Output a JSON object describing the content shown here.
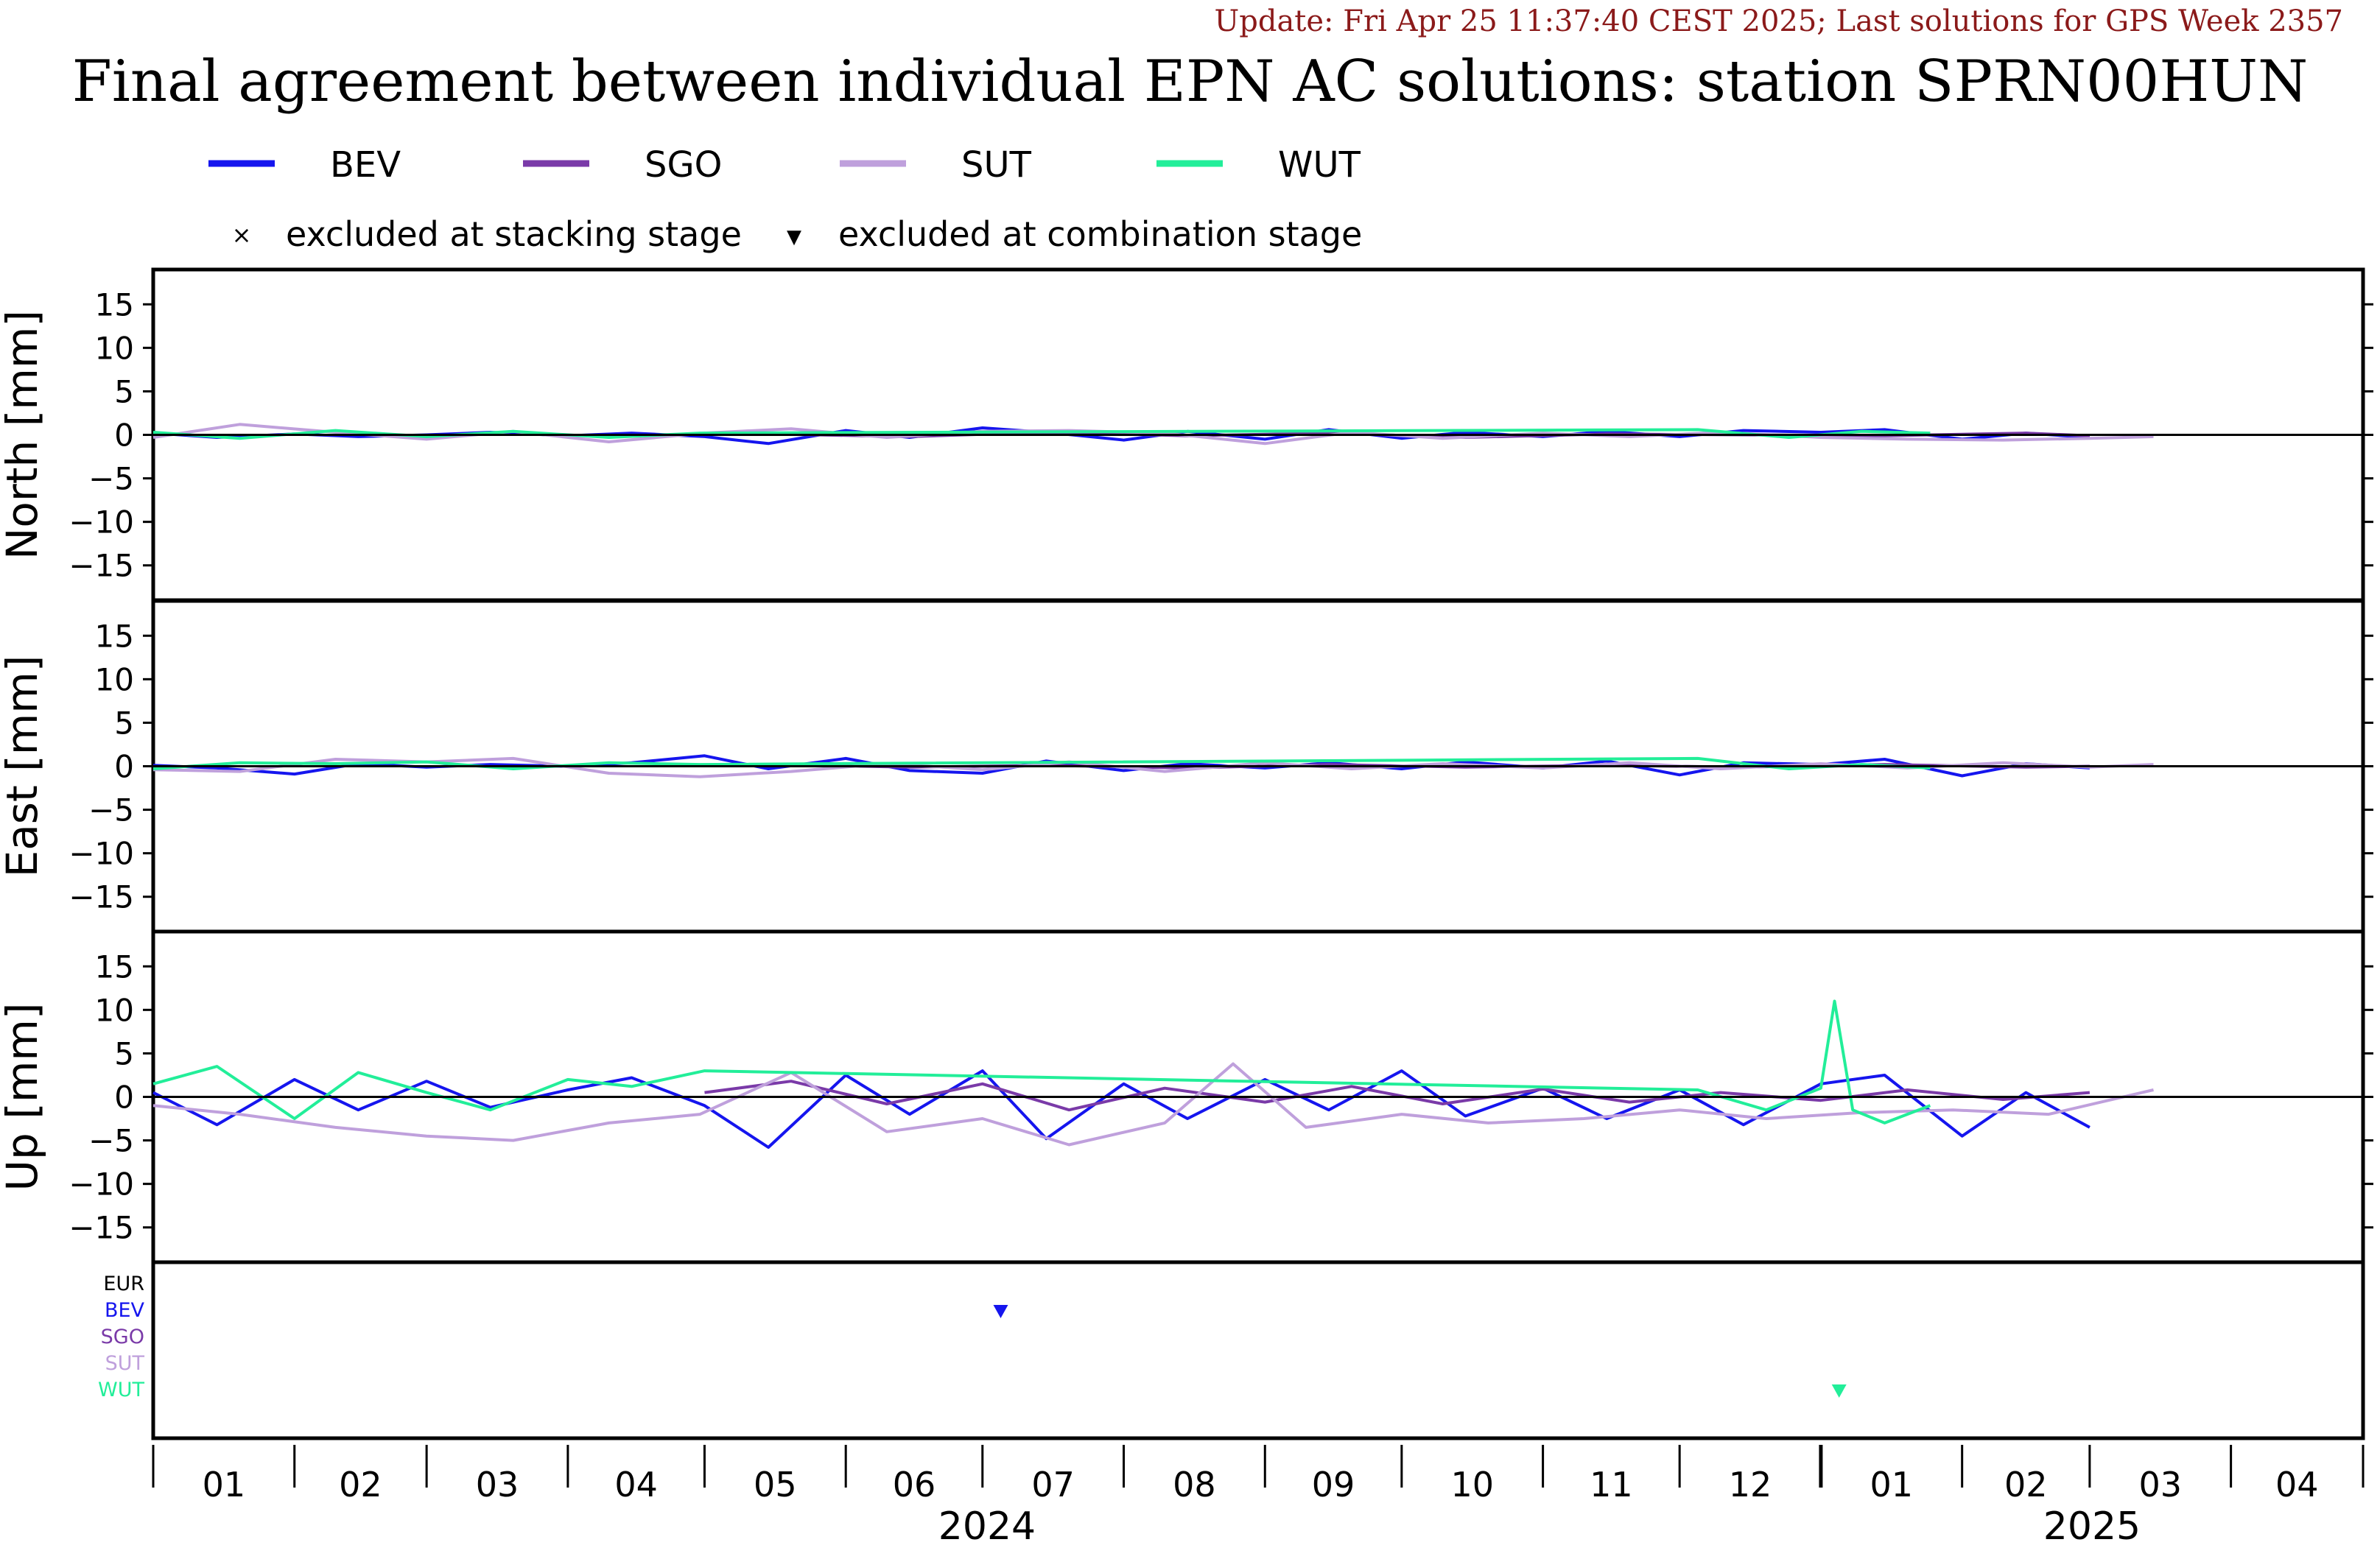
{
  "header": {
    "update_text": "Update: Fri Apr 25 11:37:40 CEST 2025; Last solutions for GPS Week 2357",
    "title": "Final agreement between individual EPN AC solutions: station SPRN00HUN"
  },
  "legend": {
    "markers": [
      {
        "symbol": "×",
        "label": "excluded at stacking stage"
      },
      {
        "symbol": "▼",
        "label": "excluded at combination stage"
      }
    ]
  },
  "colors": {
    "BEV": "#1515ee",
    "SGO": "#7a3aa8",
    "SUT": "#bfa0dc",
    "WUT": "#22ee99",
    "EUR": "#000000"
  },
  "chart_data": {
    "type": "line",
    "ylabel_unit": "[mm]",
    "ylim": [
      -19,
      19
    ],
    "yticks": [
      15,
      10,
      5,
      0,
      -5,
      -10,
      -15
    ],
    "x_months": [
      {
        "year": 2024,
        "month": "01"
      },
      {
        "year": 2024,
        "month": "02"
      },
      {
        "year": 2024,
        "month": "03"
      },
      {
        "year": 2024,
        "month": "04"
      },
      {
        "year": 2024,
        "month": "05"
      },
      {
        "year": 2024,
        "month": "06"
      },
      {
        "year": 2024,
        "month": "07"
      },
      {
        "year": 2024,
        "month": "08"
      },
      {
        "year": 2024,
        "month": "09"
      },
      {
        "year": 2024,
        "month": "10"
      },
      {
        "year": 2024,
        "month": "11"
      },
      {
        "year": 2024,
        "month": "12"
      },
      {
        "year": 2025,
        "month": "01"
      },
      {
        "year": 2025,
        "month": "02"
      },
      {
        "year": 2025,
        "month": "03"
      },
      {
        "year": 2025,
        "month": "04"
      }
    ],
    "x_years": [
      "2024",
      "2025"
    ],
    "series_names": [
      "BEV",
      "SGO",
      "SUT",
      "WUT"
    ],
    "panels": [
      {
        "component": "North",
        "series": [
          {
            "name": "BEV",
            "x": [
              "2024-01-01",
              "2024-01-15",
              "2024-02-01",
              "2024-02-15",
              "2024-03-01",
              "2024-03-15",
              "2024-04-01",
              "2024-04-15",
              "2024-05-01",
              "2024-05-15",
              "2024-06-01",
              "2024-06-15",
              "2024-07-01",
              "2024-07-15",
              "2024-08-01",
              "2024-08-15",
              "2024-09-01",
              "2024-09-15",
              "2024-10-01",
              "2024-10-15",
              "2024-11-01",
              "2024-11-15",
              "2024-12-01",
              "2024-12-15",
              "2025-01-01",
              "2025-01-15",
              "2025-02-01",
              "2025-02-15",
              "2025-03-01"
            ],
            "y": [
              0.2,
              -0.3,
              0.1,
              -0.2,
              0.0,
              0.3,
              -0.1,
              0.2,
              -0.2,
              -1.0,
              0.5,
              -0.3,
              0.8,
              0.3,
              -0.6,
              0.4,
              -0.5,
              0.6,
              -0.4,
              0.3,
              -0.2,
              0.4,
              -0.2,
              0.5,
              0.3,
              0.6,
              -0.5,
              0.2,
              -0.3
            ]
          },
          {
            "name": "SGO",
            "x": [
              "2024-05-15",
              "2024-06-15",
              "2024-07-15",
              "2024-08-15",
              "2024-09-15",
              "2024-10-15",
              "2024-11-15",
              "2024-12-15",
              "2025-01-15",
              "2025-02-15",
              "2025-03-01"
            ],
            "y": [
              0.1,
              -0.2,
              0.3,
              -0.1,
              0.2,
              -0.3,
              0.1,
              0.0,
              -0.1,
              0.2,
              -0.1
            ]
          },
          {
            "name": "SUT",
            "x": [
              "2024-01-01",
              "2024-01-20",
              "2024-02-10",
              "2024-03-01",
              "2024-03-20",
              "2024-04-10",
              "2024-05-01",
              "2024-05-20",
              "2024-06-10",
              "2024-07-01",
              "2024-07-20",
              "2024-08-10",
              "2024-09-01",
              "2024-09-20",
              "2024-10-10",
              "2024-11-01",
              "2024-11-20",
              "2024-12-10",
              "2025-01-01",
              "2025-01-20",
              "2025-02-10",
              "2025-03-01",
              "2025-03-15"
            ],
            "y": [
              -0.3,
              1.2,
              0.3,
              -0.5,
              0.4,
              -0.8,
              0.2,
              0.7,
              -0.3,
              0.4,
              0.5,
              0.2,
              -1.0,
              0.3,
              -0.4,
              0.2,
              -0.2,
              0.3,
              -0.3,
              -0.5,
              -0.6,
              -0.4,
              -0.2
            ]
          },
          {
            "name": "WUT",
            "x": [
              "2024-01-01",
              "2024-01-20",
              "2024-02-10",
              "2024-03-01",
              "2024-03-20",
              "2024-04-10",
              "2024-04-30",
              "2024-12-05",
              "2024-12-25",
              "2025-01-10",
              "2025-01-25"
            ],
            "y": [
              0.3,
              -0.4,
              0.5,
              -0.2,
              0.4,
              -0.3,
              0.2,
              0.6,
              -0.3,
              0.4,
              0.2
            ]
          }
        ]
      },
      {
        "component": "East",
        "series": [
          {
            "name": "BEV",
            "x": [
              "2024-01-01",
              "2024-01-15",
              "2024-02-01",
              "2024-02-15",
              "2024-03-01",
              "2024-03-15",
              "2024-04-01",
              "2024-04-15",
              "2024-05-01",
              "2024-05-15",
              "2024-06-01",
              "2024-06-15",
              "2024-07-01",
              "2024-07-15",
              "2024-08-01",
              "2024-08-15",
              "2024-09-01",
              "2024-09-15",
              "2024-10-01",
              "2024-10-15",
              "2024-11-01",
              "2024-11-15",
              "2024-12-01",
              "2024-12-15",
              "2025-01-01",
              "2025-01-15",
              "2025-02-01",
              "2025-02-15",
              "2025-03-01"
            ],
            "y": [
              0.1,
              -0.2,
              -0.9,
              0.3,
              -0.1,
              0.2,
              0.0,
              0.4,
              1.2,
              -0.3,
              0.9,
              -0.5,
              -0.8,
              0.6,
              -0.5,
              0.3,
              -0.2,
              0.4,
              -0.3,
              0.5,
              -0.2,
              0.6,
              -1.0,
              0.4,
              0.2,
              0.8,
              -1.1,
              0.3,
              -0.2
            ]
          },
          {
            "name": "SGO",
            "x": [
              "2024-05-15",
              "2024-06-15",
              "2024-07-15",
              "2024-08-15",
              "2024-09-15",
              "2024-10-15",
              "2024-11-15",
              "2024-12-15",
              "2025-01-15",
              "2025-02-15",
              "2025-03-01"
            ],
            "y": [
              0.2,
              -0.1,
              0.1,
              -0.2,
              0.2,
              -0.1,
              0.1,
              -0.1,
              0.2,
              -0.1,
              0.0
            ]
          },
          {
            "name": "SUT",
            "x": [
              "2024-01-01",
              "2024-01-20",
              "2024-02-10",
              "2024-03-01",
              "2024-03-20",
              "2024-04-10",
              "2024-04-30",
              "2024-05-20",
              "2024-06-10",
              "2024-07-01",
              "2024-07-20",
              "2024-08-10",
              "2024-09-01",
              "2024-09-20",
              "2024-10-10",
              "2024-11-01",
              "2024-11-20",
              "2024-12-10",
              "2025-01-01",
              "2025-01-20",
              "2025-02-10",
              "2025-03-01",
              "2025-03-15"
            ],
            "y": [
              -0.4,
              -0.6,
              0.8,
              0.5,
              0.9,
              -0.8,
              -1.2,
              -0.6,
              0.3,
              -0.4,
              0.5,
              -0.6,
              0.4,
              -0.3,
              0.3,
              -0.2,
              0.4,
              -0.3,
              0.3,
              -0.2,
              0.4,
              -0.1,
              0.2
            ]
          },
          {
            "name": "WUT",
            "x": [
              "2024-01-01",
              "2024-01-20",
              "2024-02-10",
              "2024-03-01",
              "2024-03-20",
              "2024-04-10",
              "2024-04-30",
              "2024-12-05",
              "2024-12-25",
              "2025-01-10",
              "2025-01-25"
            ],
            "y": [
              -0.3,
              0.4,
              0.3,
              0.5,
              -0.3,
              0.4,
              0.2,
              0.9,
              -0.3,
              0.2,
              -0.2
            ]
          }
        ]
      },
      {
        "component": "Up",
        "series": [
          {
            "name": "BEV",
            "x": [
              "2024-01-01",
              "2024-01-15",
              "2024-02-01",
              "2024-02-15",
              "2024-03-01",
              "2024-03-15",
              "2024-04-01",
              "2024-04-15",
              "2024-05-01",
              "2024-05-15",
              "2024-06-01",
              "2024-06-15",
              "2024-07-01",
              "2024-07-15",
              "2024-08-01",
              "2024-08-15",
              "2024-09-01",
              "2024-09-15",
              "2024-10-01",
              "2024-10-15",
              "2024-11-01",
              "2024-11-15",
              "2024-12-01",
              "2024-12-15",
              "2025-01-01",
              "2025-01-15",
              "2025-02-01",
              "2025-02-15",
              "2025-03-01"
            ],
            "y": [
              0.5,
              -3.2,
              2.0,
              -1.5,
              1.8,
              -1.2,
              0.8,
              2.2,
              -1.0,
              -5.8,
              2.5,
              -2.0,
              3.0,
              -4.8,
              1.5,
              -2.5,
              2.0,
              -1.5,
              3.0,
              -2.2,
              1.0,
              -2.5,
              0.8,
              -3.2,
              1.5,
              2.5,
              -4.5,
              0.5,
              -3.5
            ]
          },
          {
            "name": "SGO",
            "x": [
              "2024-05-01",
              "2024-05-20",
              "2024-06-10",
              "2024-07-01",
              "2024-07-20",
              "2024-08-10",
              "2024-09-01",
              "2024-09-20",
              "2024-10-10",
              "2024-11-01",
              "2024-11-20",
              "2024-12-10",
              "2025-01-01",
              "2025-01-20",
              "2025-02-10",
              "2025-03-01"
            ],
            "y": [
              0.5,
              1.8,
              -0.8,
              1.5,
              -1.5,
              1.0,
              -0.6,
              1.2,
              -0.8,
              0.9,
              -0.6,
              0.5,
              -0.4,
              0.8,
              -0.3,
              0.5
            ]
          },
          {
            "name": "SUT",
            "x": [
              "2024-01-01",
              "2024-01-20",
              "2024-02-10",
              "2024-03-01",
              "2024-03-20",
              "2024-04-10",
              "2024-04-30",
              "2024-05-20",
              "2024-06-10",
              "2024-07-01",
              "2024-07-20",
              "2024-08-10",
              "2024-08-25",
              "2024-09-10",
              "2024-10-01",
              "2024-10-20",
              "2024-11-10",
              "2024-12-01",
              "2024-12-20",
              "2025-01-10",
              "2025-01-30",
              "2025-02-20",
              "2025-03-15"
            ],
            "y": [
              -1.0,
              -2.0,
              -3.5,
              -4.5,
              -5.0,
              -3.0,
              -2.0,
              2.8,
              -4.0,
              -2.5,
              -5.5,
              -3.0,
              3.8,
              -3.5,
              -2.0,
              -3.0,
              -2.5,
              -1.5,
              -2.5,
              -1.8,
              -1.5,
              -2.0,
              0.8
            ]
          },
          {
            "name": "WUT",
            "x": [
              "2024-01-01",
              "2024-01-15",
              "2024-02-01",
              "2024-02-15",
              "2024-03-01",
              "2024-03-15",
              "2024-04-01",
              "2024-04-15",
              "2024-05-01",
              "2024-12-05",
              "2024-12-20",
              "2025-01-01",
              "2025-01-04",
              "2025-01-08",
              "2025-01-15",
              "2025-01-25"
            ],
            "y": [
              1.5,
              3.5,
              -2.5,
              2.8,
              0.5,
              -1.5,
              2.0,
              1.2,
              3.0,
              0.8,
              -1.5,
              1.0,
              11.0,
              -1.5,
              -3.0,
              -1.0
            ]
          }
        ]
      }
    ],
    "exclusion_panel": {
      "rows": [
        "EUR",
        "BEV",
        "SGO",
        "SUT",
        "WUT"
      ],
      "markers": [
        {
          "ac": "BEV",
          "date": "2024-07-05",
          "type": "excluded at combination stage"
        },
        {
          "ac": "WUT",
          "date": "2025-01-05",
          "type": "excluded at combination stage"
        }
      ]
    }
  }
}
